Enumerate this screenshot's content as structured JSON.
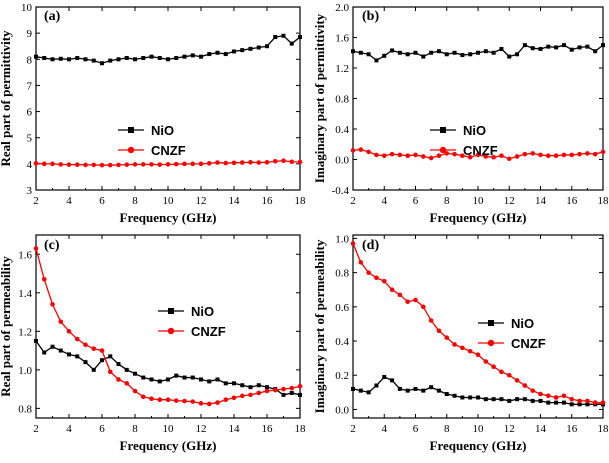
{
  "chart_data": [
    {
      "panel": "(a)",
      "type": "line",
      "xlabel": "Frequency (GHz)",
      "ylabel": "Real part of permittivity",
      "xlim": [
        2,
        18
      ],
      "ylim": [
        3,
        10
      ],
      "xticks": [
        2,
        4,
        6,
        8,
        10,
        12,
        14,
        16,
        18
      ],
      "yticks": [
        3,
        4,
        5,
        6,
        7,
        8,
        9,
        10
      ],
      "legend_position": "center-left",
      "series": [
        {
          "name": "NiO",
          "color": "#000000",
          "marker": "square",
          "x": [
            2,
            2.5,
            3,
            3.5,
            4,
            4.5,
            5,
            5.5,
            6,
            6.5,
            7,
            7.5,
            8,
            8.5,
            9,
            9.5,
            10,
            10.5,
            11,
            11.5,
            12,
            12.5,
            13,
            13.5,
            14,
            14.5,
            15,
            15.5,
            16,
            16.5,
            17,
            17.5,
            18
          ],
          "y": [
            8.1,
            8.05,
            8.0,
            8.02,
            8.0,
            8.05,
            8.0,
            7.95,
            7.85,
            7.95,
            8.0,
            8.05,
            8.0,
            8.05,
            8.1,
            8.05,
            8.0,
            8.05,
            8.1,
            8.15,
            8.1,
            8.2,
            8.25,
            8.2,
            8.3,
            8.35,
            8.4,
            8.45,
            8.5,
            8.85,
            8.9,
            8.6,
            8.85
          ]
        },
        {
          "name": "CNZF",
          "color": "#ff0000",
          "marker": "circle",
          "x": [
            2,
            2.5,
            3,
            3.5,
            4,
            4.5,
            5,
            5.5,
            6,
            6.5,
            7,
            7.5,
            8,
            8.5,
            9,
            9.5,
            10,
            10.5,
            11,
            11.5,
            12,
            12.5,
            13,
            13.5,
            14,
            14.5,
            15,
            15.5,
            16,
            16.5,
            17,
            17.5,
            18
          ],
          "y": [
            4.02,
            4.0,
            4.0,
            3.98,
            3.97,
            3.97,
            3.96,
            3.96,
            3.95,
            3.95,
            3.96,
            3.97,
            3.98,
            3.98,
            3.98,
            3.97,
            3.98,
            3.99,
            4.0,
            4.0,
            4.0,
            4.02,
            4.05,
            4.03,
            4.04,
            4.05,
            4.06,
            4.05,
            4.06,
            4.1,
            4.12,
            4.08,
            4.07
          ]
        }
      ]
    },
    {
      "panel": "(b)",
      "type": "line",
      "xlabel": "Frequency (GHz)",
      "ylabel": "Imaginary part of permittivity",
      "xlim": [
        2,
        18
      ],
      "ylim": [
        -0.4,
        2.0
      ],
      "xticks": [
        2,
        4,
        6,
        8,
        10,
        12,
        14,
        16,
        18
      ],
      "yticks": [
        -0.4,
        0.0,
        0.4,
        0.8,
        1.2,
        1.6,
        2.0
      ],
      "yticklabels": [
        "-0.4",
        "0.0",
        "0.4",
        "0.8",
        "1.2",
        "1.6",
        "2.0"
      ],
      "legend_position": "center",
      "series": [
        {
          "name": "NiO",
          "color": "#000000",
          "marker": "square",
          "x": [
            2,
            2.5,
            3,
            3.5,
            4,
            4.5,
            5,
            5.5,
            6,
            6.5,
            7,
            7.5,
            8,
            8.5,
            9,
            9.5,
            10,
            10.5,
            11,
            11.5,
            12,
            12.5,
            13,
            13.5,
            14,
            14.5,
            15,
            15.5,
            16,
            16.5,
            17,
            17.5,
            18
          ],
          "y": [
            1.42,
            1.4,
            1.38,
            1.3,
            1.36,
            1.43,
            1.4,
            1.38,
            1.4,
            1.35,
            1.4,
            1.42,
            1.38,
            1.4,
            1.37,
            1.38,
            1.4,
            1.42,
            1.4,
            1.45,
            1.35,
            1.38,
            1.5,
            1.46,
            1.45,
            1.48,
            1.47,
            1.5,
            1.44,
            1.47,
            1.48,
            1.42,
            1.5
          ]
        },
        {
          "name": "CNZF",
          "color": "#ff0000",
          "marker": "circle",
          "x": [
            2,
            2.5,
            3,
            3.5,
            4,
            4.5,
            5,
            5.5,
            6,
            6.5,
            7,
            7.5,
            8,
            8.5,
            9,
            9.5,
            10,
            10.5,
            11,
            11.5,
            12,
            12.5,
            13,
            13.5,
            14,
            14.5,
            15,
            15.5,
            16,
            16.5,
            17,
            17.5,
            18
          ],
          "y": [
            0.12,
            0.13,
            0.1,
            0.06,
            0.05,
            0.07,
            0.06,
            0.05,
            0.06,
            0.04,
            0.02,
            0.05,
            0.08,
            0.07,
            0.05,
            0.03,
            0.06,
            0.04,
            0.03,
            0.05,
            0.01,
            0.04,
            0.07,
            0.08,
            0.06,
            0.05,
            0.05,
            0.06,
            0.06,
            0.07,
            0.08,
            0.07,
            0.1
          ]
        }
      ]
    },
    {
      "panel": "(c)",
      "type": "line",
      "xlabel": "Frequency (GHz)",
      "ylabel": "Real part of permeability",
      "xlim": [
        2,
        18
      ],
      "ylim": [
        0.75,
        1.7
      ],
      "xticks": [
        2,
        4,
        6,
        8,
        10,
        12,
        14,
        16,
        18
      ],
      "yticks": [
        0.8,
        1.0,
        1.2,
        1.4,
        1.6
      ],
      "yticklabels": [
        "0.8",
        "1.0",
        "1.2",
        "1.4",
        "1.6"
      ],
      "legend_position": "center-right",
      "series": [
        {
          "name": "NiO",
          "color": "#000000",
          "marker": "square",
          "x": [
            2,
            2.5,
            3,
            3.5,
            4,
            4.5,
            5,
            5.5,
            6,
            6.5,
            7,
            7.5,
            8,
            8.5,
            9,
            9.5,
            10,
            10.5,
            11,
            11.5,
            12,
            12.5,
            13,
            13.5,
            14,
            14.5,
            15,
            15.5,
            16,
            16.5,
            17,
            17.5,
            18
          ],
          "y": [
            1.15,
            1.09,
            1.12,
            1.1,
            1.08,
            1.07,
            1.04,
            1.0,
            1.05,
            1.07,
            1.03,
            1.0,
            0.98,
            0.96,
            0.95,
            0.94,
            0.95,
            0.97,
            0.96,
            0.96,
            0.95,
            0.94,
            0.95,
            0.93,
            0.93,
            0.92,
            0.91,
            0.92,
            0.91,
            0.9,
            0.87,
            0.88,
            0.87
          ]
        },
        {
          "name": "CNZF",
          "color": "#ff0000",
          "marker": "circle",
          "x": [
            2,
            2.5,
            3,
            3.5,
            4,
            4.5,
            5,
            5.5,
            6,
            6.5,
            7,
            7.5,
            8,
            8.5,
            9,
            9.5,
            10,
            10.5,
            11,
            11.5,
            12,
            12.5,
            13,
            13.5,
            14,
            14.5,
            15,
            15.5,
            16,
            16.5,
            17,
            17.5,
            18
          ],
          "y": [
            1.63,
            1.47,
            1.34,
            1.25,
            1.2,
            1.16,
            1.13,
            1.11,
            1.1,
            0.99,
            0.95,
            0.93,
            0.89,
            0.86,
            0.85,
            0.845,
            0.845,
            0.84,
            0.838,
            0.835,
            0.826,
            0.823,
            0.83,
            0.845,
            0.855,
            0.865,
            0.87,
            0.88,
            0.89,
            0.895,
            0.9,
            0.905,
            0.915
          ]
        }
      ]
    },
    {
      "panel": "(d)",
      "type": "line",
      "xlabel": "Frequency (GHz)",
      "ylabel": "Imaginary part of permeability",
      "xlim": [
        2,
        18
      ],
      "ylim": [
        -0.05,
        1.02
      ],
      "xticks": [
        2,
        4,
        6,
        8,
        10,
        12,
        14,
        16,
        18
      ],
      "yticks": [
        0.0,
        0.2,
        0.4,
        0.6,
        0.8,
        1.0
      ],
      "yticklabels": [
        "0.0",
        "0.2",
        "0.4",
        "0.6",
        "0.8",
        "1.0"
      ],
      "legend_position": "center-right",
      "series": [
        {
          "name": "NiO",
          "color": "#000000",
          "marker": "square",
          "x": [
            2,
            2.5,
            3,
            3.5,
            4,
            4.5,
            5,
            5.5,
            6,
            6.5,
            7,
            7.5,
            8,
            8.5,
            9,
            9.5,
            10,
            10.5,
            11,
            11.5,
            12,
            12.5,
            13,
            13.5,
            14,
            14.5,
            15,
            15.5,
            16,
            16.5,
            17,
            17.5,
            18
          ],
          "y": [
            0.12,
            0.11,
            0.1,
            0.14,
            0.19,
            0.17,
            0.12,
            0.11,
            0.12,
            0.11,
            0.13,
            0.11,
            0.09,
            0.08,
            0.07,
            0.07,
            0.07,
            0.06,
            0.06,
            0.06,
            0.05,
            0.06,
            0.06,
            0.05,
            0.05,
            0.04,
            0.04,
            0.04,
            0.03,
            0.03,
            0.03,
            0.03,
            0.03
          ]
        },
        {
          "name": "CNZF",
          "color": "#ff0000",
          "marker": "circle",
          "x": [
            2,
            2.5,
            3,
            3.5,
            4,
            4.5,
            5,
            5.5,
            6,
            6.5,
            7,
            7.5,
            8,
            8.5,
            9,
            9.5,
            10,
            10.5,
            11,
            11.5,
            12,
            12.5,
            13,
            13.5,
            14,
            14.5,
            15,
            15.5,
            16,
            16.5,
            17,
            17.5,
            18
          ],
          "y": [
            0.97,
            0.86,
            0.8,
            0.77,
            0.75,
            0.7,
            0.67,
            0.63,
            0.64,
            0.6,
            0.52,
            0.46,
            0.42,
            0.38,
            0.36,
            0.34,
            0.32,
            0.28,
            0.25,
            0.22,
            0.2,
            0.17,
            0.14,
            0.11,
            0.09,
            0.08,
            0.07,
            0.08,
            0.06,
            0.05,
            0.05,
            0.04,
            0.04
          ]
        }
      ]
    }
  ]
}
